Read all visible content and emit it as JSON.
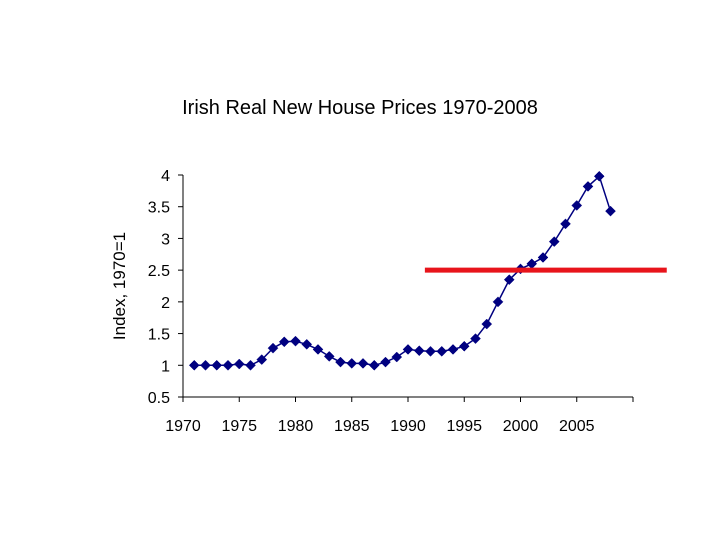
{
  "chart_data": {
    "type": "line",
    "title": "Irish Real New House Prices 1970-2008",
    "xlabel": "",
    "ylabel": "Index, 1970=1",
    "xlim": [
      1970,
      2010
    ],
    "ylim": [
      0.5,
      4
    ],
    "x_ticks": [
      "1970",
      "1975",
      "1980",
      "1985",
      "1990",
      "1995",
      "2000",
      "2005"
    ],
    "y_ticks": [
      "0.5",
      "1",
      "1.5",
      "2",
      "2.5",
      "3",
      "3.5",
      "4"
    ],
    "grid": false,
    "series": [
      {
        "name": "Real New House Prices",
        "color": "#000080",
        "marker": "diamond",
        "x": [
          1971,
          1972,
          1973,
          1974,
          1975,
          1976,
          1977,
          1978,
          1979,
          1980,
          1981,
          1982,
          1983,
          1984,
          1985,
          1986,
          1987,
          1988,
          1989,
          1990,
          1991,
          1992,
          1993,
          1994,
          1995,
          1996,
          1997,
          1998,
          1999,
          2000,
          2001,
          2002,
          2003,
          2004,
          2005,
          2006,
          2007,
          2008
        ],
        "values": [
          1.0,
          1.0,
          1.0,
          1.0,
          1.02,
          1.0,
          1.09,
          1.27,
          1.37,
          1.38,
          1.33,
          1.25,
          1.14,
          1.05,
          1.03,
          1.03,
          1.0,
          1.05,
          1.13,
          1.25,
          1.23,
          1.22,
          1.22,
          1.25,
          1.3,
          1.42,
          1.65,
          2.0,
          2.35,
          2.52,
          2.6,
          2.7,
          2.95,
          3.23,
          3.52,
          3.82,
          3.98,
          3.43
        ]
      }
    ],
    "annotations": [
      {
        "type": "horizontal-line",
        "y": 2.5,
        "x_start": 1991.5,
        "x_end": 2013,
        "color": "#e8141b"
      }
    ]
  }
}
